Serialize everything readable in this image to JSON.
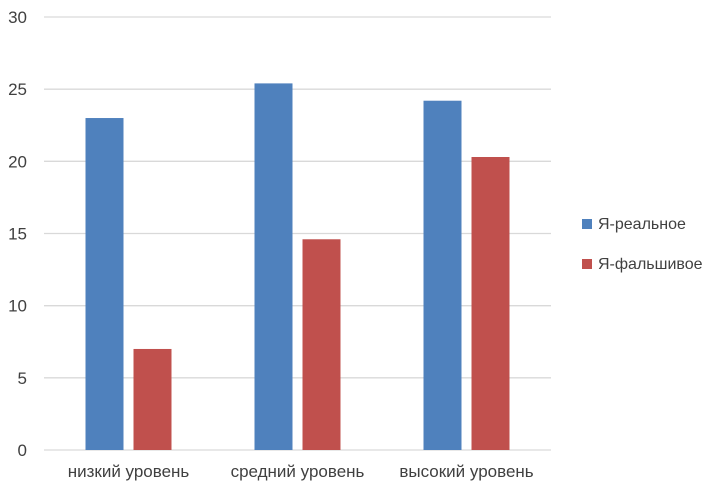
{
  "chart_data": {
    "type": "bar",
    "categories": [
      "низкий уровень",
      "средний уровень",
      "высокий уровень"
    ],
    "series": [
      {
        "name": "Я-реальное",
        "values": [
          23,
          25.4,
          24.2
        ],
        "color": "#4F81BD"
      },
      {
        "name": "Я-фальшивое",
        "values": [
          7,
          14.6,
          20.3
        ],
        "color": "#C0504D"
      }
    ],
    "ylim": [
      0,
      30
    ],
    "yticks": [
      0,
      5,
      10,
      15,
      20,
      25,
      30
    ],
    "grid": true,
    "legend": "right",
    "title": "",
    "xlabel": "",
    "ylabel": ""
  }
}
